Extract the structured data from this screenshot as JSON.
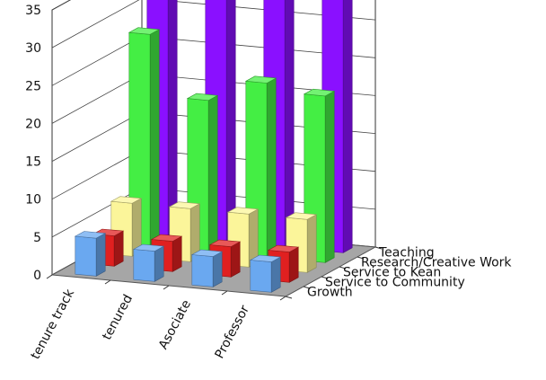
{
  "chart_data": {
    "type": "bar",
    "style": "3d-clustered-columns",
    "categories": [
      "tenure track",
      "tenured",
      "Asociate",
      "Professor"
    ],
    "series": [
      {
        "name": "Growth",
        "values": [
          5,
          4,
          4,
          4
        ],
        "color": "#6aa8f0"
      },
      {
        "name": "Service to Community",
        "values": [
          4,
          4,
          4,
          4
        ],
        "color": "#e02020"
      },
      {
        "name": "Service to Kean",
        "values": [
          7,
          7,
          7,
          7
        ],
        "color": "#fbf59a"
      },
      {
        "name": "Research/Creative Work",
        "values": [
          28,
          20,
          23,
          22
        ],
        "color": "#44ee44"
      },
      {
        "name": "Teaching",
        "values": [
          34,
          33,
          34,
          34
        ],
        "color": "#8a10ff"
      }
    ],
    "ylim": [
      0,
      35
    ],
    "yticks": [
      "0",
      "5",
      "10",
      "15",
      "20",
      "25",
      "30",
      "35"
    ],
    "grid": true,
    "legend": "none (series names on depth axis)"
  }
}
